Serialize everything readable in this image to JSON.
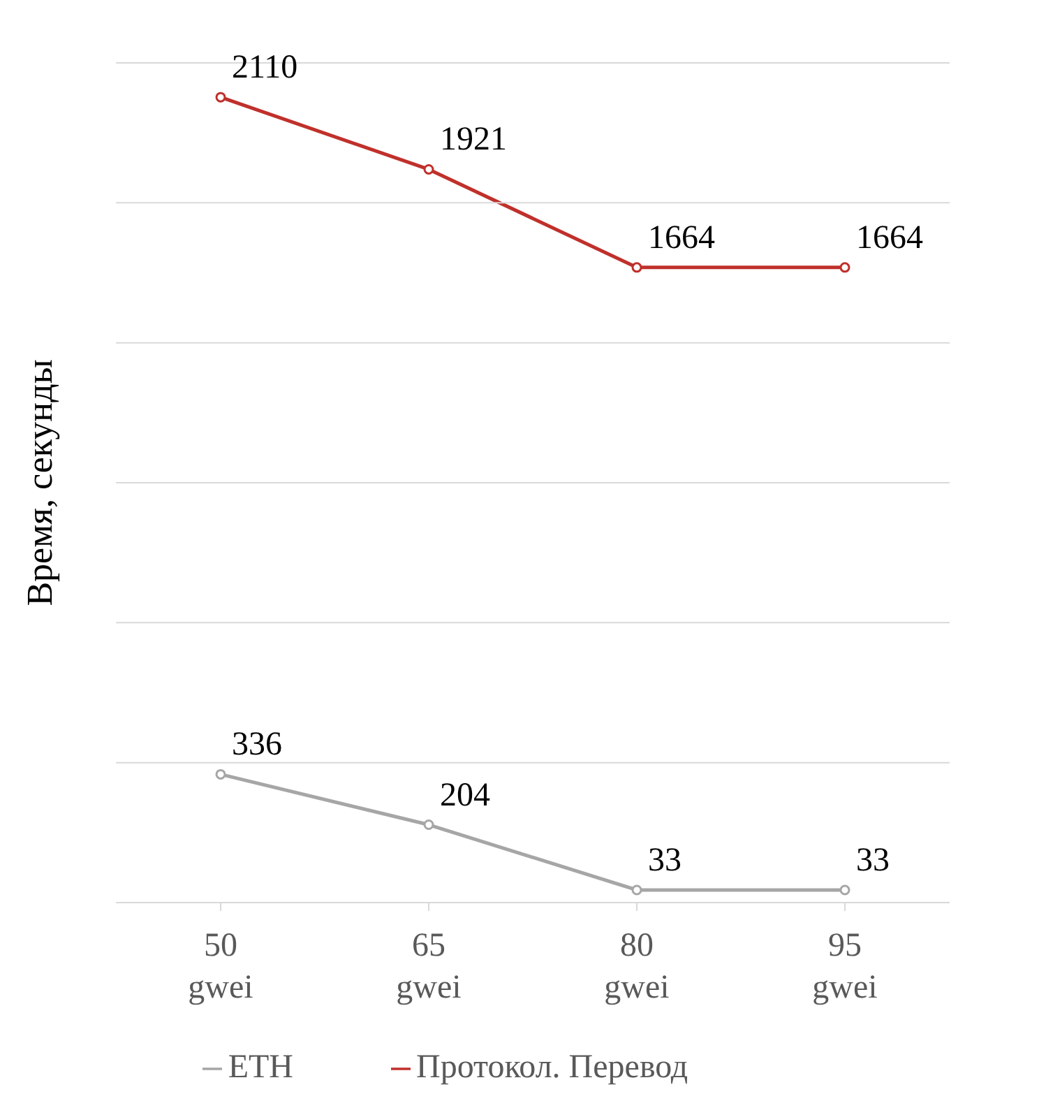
{
  "chart_data": {
    "type": "line",
    "ylabel": "Время, секунды",
    "categories": [
      "50 gwei",
      "65 gwei",
      "80 gwei",
      "95 gwei"
    ],
    "series": [
      {
        "name": "ETH",
        "color": "#a6a6a6",
        "values": [
          336,
          204,
          33,
          33
        ]
      },
      {
        "name": "Протокол. Перевод",
        "color": "#c0302b",
        "values": [
          2110,
          1921,
          1664,
          1664
        ]
      }
    ],
    "ylim": [
      0,
      2200
    ],
    "yticks": [
      {
        "value": 0,
        "label": null
      },
      {
        "value": 366.7,
        "label": null
      },
      {
        "value": 733.3,
        "label": null
      },
      {
        "value": 1100,
        "label": null
      },
      {
        "value": 1466.7,
        "label": null
      },
      {
        "value": 1833.3,
        "label": null
      },
      {
        "value": 2200,
        "label": null
      }
    ],
    "grid": "y",
    "tick_labels": "x",
    "legend": "bottom",
    "marker": "circle",
    "line_style": "solid",
    "data_labels": true
  }
}
